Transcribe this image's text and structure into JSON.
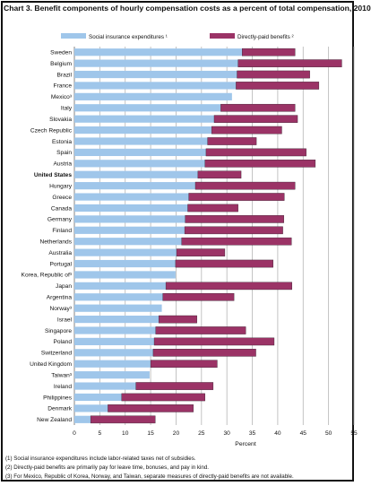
{
  "title": "Chart 3. Benefit components of hourly compensation costs as a percent of total compensation, 2010",
  "footnotes": [
    "(1) Social insurance expenditures include labor-related taxes net of subsidies.",
    "(2) Directly-paid benefits are primarily pay for leave time, bonuses, and pay in kind.",
    "(3) For Mexico, Republic of Korea, Norway, and Taiwan, separate measures of directly-paid benefits are not available."
  ],
  "colors": {
    "social": "#9fc6ea",
    "direct": "#9b3366",
    "bar_outline": "#3a2030",
    "grid": "#b5b5b5"
  },
  "chart_data": {
    "type": "bar",
    "orientation": "horizontal",
    "stacked": true,
    "xlabel": "Percent",
    "xlim": [
      0,
      55
    ],
    "xticks": [
      0,
      5,
      10,
      15,
      20,
      25,
      30,
      35,
      40,
      45,
      50,
      55
    ],
    "grid": true,
    "legend_position": "top",
    "categories": [
      "Sweden",
      "Belgium",
      "Brazil",
      "France",
      "Mexico³",
      "Italy",
      "Slovakia",
      "Czech Republic",
      "Estonia",
      "Spain",
      "Austria",
      "United States",
      "Hungary",
      "Greece",
      "Canada",
      "Germany",
      "Finland",
      "Netherlands",
      "Australia",
      "Portugal",
      "Korea, Republic of³",
      "Japan",
      "Argentina",
      "Norway³",
      "Israel",
      "Singapore",
      "Poland",
      "Switzerland",
      "United Kingdom",
      "Taiwan³",
      "Ireland",
      "Philippines",
      "Denmark",
      "New Zealand"
    ],
    "series": [
      {
        "name": "Social insurance expenditures ¹",
        "values": [
          33.0,
          32.2,
          32.0,
          31.8,
          31.0,
          28.8,
          27.5,
          27.0,
          26.2,
          25.9,
          25.7,
          24.3,
          23.8,
          22.5,
          22.3,
          21.8,
          21.7,
          21.1,
          20.1,
          19.9,
          19.9,
          18.0,
          17.4,
          17.2,
          16.6,
          16.0,
          15.7,
          15.5,
          15.0,
          14.8,
          12.1,
          9.3,
          6.6,
          3.2
        ]
      },
      {
        "name": "Directly-paid benefits ²",
        "values": [
          10.4,
          20.4,
          14.3,
          16.3,
          0,
          14.6,
          16.4,
          13.8,
          9.6,
          19.7,
          21.7,
          8.5,
          19.6,
          18.8,
          9.9,
          19.4,
          19.3,
          21.6,
          9.5,
          19.2,
          0,
          24.8,
          14.0,
          0,
          7.5,
          17.7,
          23.6,
          20.2,
          13.1,
          0,
          15.2,
          16.4,
          16.8,
          12.7
        ]
      }
    ]
  }
}
